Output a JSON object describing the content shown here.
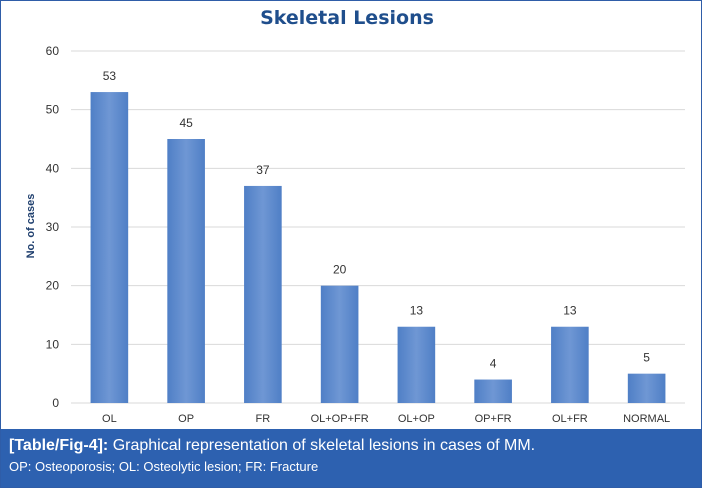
{
  "chart_data": {
    "type": "bar",
    "title": "Skeletal Lesions",
    "xlabel": "",
    "ylabel": "No. of cases",
    "categories": [
      "OL",
      "OP",
      "FR",
      "OL+OP+FR",
      "OL+OP",
      "OP+FR",
      "OL+FR",
      "NORMAL"
    ],
    "values": [
      53,
      45,
      37,
      20,
      13,
      4,
      13,
      5
    ],
    "data_labels": [
      "53",
      "45",
      "37",
      "20",
      "13",
      "4",
      "13",
      "5"
    ],
    "y_ticks": [
      "0",
      "10",
      "20",
      "30",
      "40",
      "50",
      "60"
    ],
    "ylim": [
      0,
      60
    ],
    "grid": true,
    "legend": "none",
    "bar_color": "#4f7fc6",
    "bar_color_light": "#6f97d4"
  },
  "caption": {
    "tag": "[Table/Fig-4]:",
    "text": " Graphical representation of skeletal lesions in cases of MM.",
    "note": "OP: Osteoporosis; OL: Osteolytic lesion; FR: Fracture",
    "background": "#2d61b0"
  }
}
